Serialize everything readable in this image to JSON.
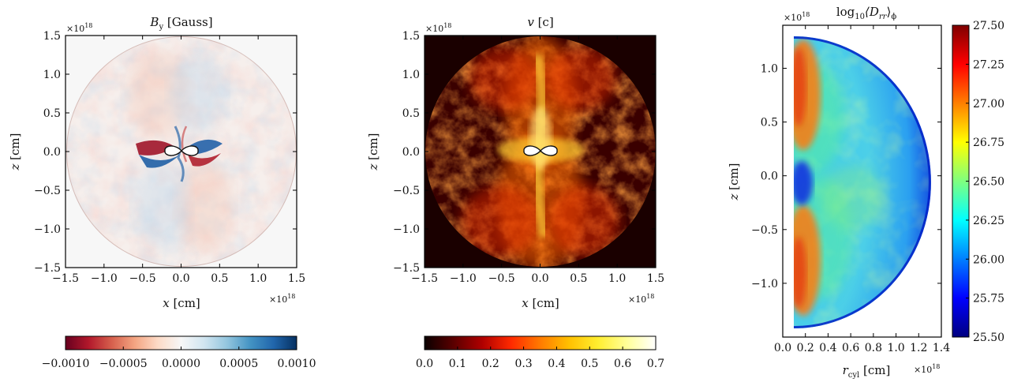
{
  "chart_data": [
    {
      "type": "heatmap",
      "title": "B_y [Gauss]",
      "title_main": "B",
      "title_sub": "y",
      "title_rest": " [Gauss]",
      "xlabel_var": "x",
      "xlabel_unit": " [cm]",
      "ylabel_var": "z",
      "ylabel_unit": " [cm]",
      "xlim": [
        -1.5,
        1.5
      ],
      "ylim": [
        -1.5,
        1.5
      ],
      "xticks": [
        "−1.5",
        "−1.0",
        "−0.5",
        "0.0",
        "0.5",
        "1.0",
        "1.5"
      ],
      "yticks": [
        "−1.5",
        "−1.0",
        "−0.5",
        "0.0",
        "0.5",
        "1.0",
        "1.5"
      ],
      "x_multiplier": "×10",
      "x_multiplier_exp": "18",
      "y_multiplier": "×10",
      "y_multiplier_exp": "18",
      "colormap": "RdBu",
      "colorbar_range": [
        -0.001,
        0.001
      ],
      "colorbar_ticks": [
        "−0.0010",
        "−0.0005",
        "0.0000",
        "0.0005",
        "0.0010"
      ],
      "colorbar_colors": [
        "#67001f",
        "#b2182b",
        "#d6604d",
        "#f4a582",
        "#fddbc7",
        "#f7f7f7",
        "#d1e5f0",
        "#92c5de",
        "#4393c3",
        "#2166ac",
        "#053061"
      ],
      "domain": "circle of radius 1.5e18 cm"
    },
    {
      "type": "heatmap",
      "title": "v [c]",
      "title_main": "v",
      "title_rest": " [c]",
      "xlabel_var": "x",
      "xlabel_unit": " [cm]",
      "ylabel_var": "z",
      "ylabel_unit": " [cm]",
      "xlim": [
        -1.5,
        1.5
      ],
      "ylim": [
        -1.5,
        1.5
      ],
      "xticks": [
        "−1.5",
        "−1.0",
        "−0.5",
        "0.0",
        "0.5",
        "1.0",
        "1.5"
      ],
      "yticks": [
        "−1.5",
        "−1.0",
        "−0.5",
        "0.0",
        "0.5",
        "1.0",
        "1.5"
      ],
      "x_multiplier": "×10",
      "x_multiplier_exp": "18",
      "y_multiplier": "×10",
      "y_multiplier_exp": "18",
      "colormap": "hot",
      "colorbar_range": [
        0.0,
        0.7
      ],
      "colorbar_ticks": [
        "0.0",
        "0.1",
        "0.2",
        "0.3",
        "0.4",
        "0.5",
        "0.6",
        "0.7"
      ],
      "colorbar_colors": [
        "#0a0000",
        "#5a0000",
        "#b00000",
        "#ff2a00",
        "#ff7a00",
        "#ffc000",
        "#ffee30",
        "#ffff99",
        "#ffffff"
      ],
      "background": "#1a0000"
    },
    {
      "type": "heatmap",
      "title": "log10 <D_rr>_phi",
      "title_prefix": "log",
      "title_prefix_sub": "10",
      "title_main": "⟨D",
      "title_main_sub": "rr",
      "title_close": "⟩",
      "title_close_sub": "ϕ",
      "xlabel_var": "r",
      "xlabel_sub": "cyl",
      "xlabel_unit": " [cm]",
      "ylabel_var": "z",
      "ylabel_unit": " [cm]",
      "xlim": [
        0.0,
        1.4
      ],
      "ylim": [
        -1.5,
        1.4
      ],
      "xticks": [
        "0.0",
        "0.2",
        "0.4",
        "0.6",
        "0.8",
        "1.0",
        "1.2",
        "1.4"
      ],
      "yticks": [
        "−1.0",
        "−0.5",
        "0.0",
        "0.5",
        "1.0"
      ],
      "x_multiplier": "×10",
      "x_multiplier_exp": "18",
      "y_multiplier": "×10",
      "y_multiplier_exp": "18",
      "colormap": "jet",
      "colorbar_range": [
        25.5,
        27.5
      ],
      "colorbar_ticks": [
        "25.50",
        "25.75",
        "26.00",
        "26.25",
        "26.50",
        "26.75",
        "27.00",
        "27.25",
        "27.50"
      ],
      "colorbar_colors": [
        "#00007f",
        "#0000ff",
        "#007fff",
        "#00ffff",
        "#7fff7f",
        "#ffff00",
        "#ff7f00",
        "#ff0000",
        "#7f0000"
      ],
      "domain": "half disc of radius 1.3e18 cm"
    }
  ]
}
